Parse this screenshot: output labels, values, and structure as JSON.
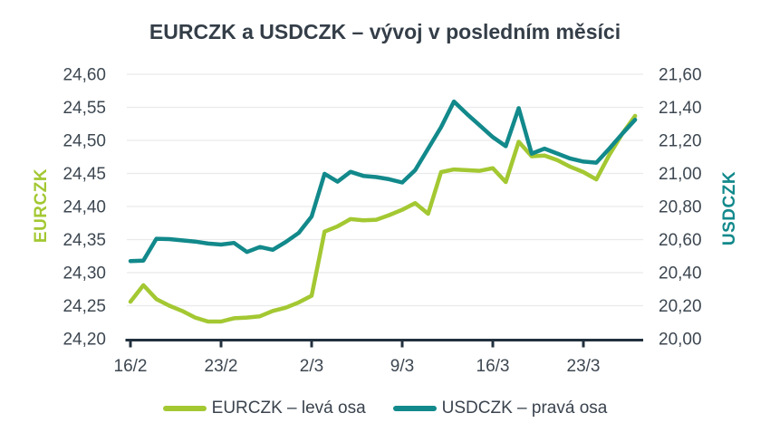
{
  "chart_data": {
    "type": "line",
    "title": "EURCZK a USDCZK – vývoj v posledním měsíci",
    "x": [
      "16/2",
      "17/2",
      "18/2",
      "19/2",
      "20/2",
      "21/2",
      "22/2",
      "23/2",
      "24/2",
      "25/2",
      "26/2",
      "27/2",
      "28/2",
      "1/3",
      "2/3",
      "3/3",
      "4/3",
      "5/3",
      "6/3",
      "7/3",
      "8/3",
      "9/3",
      "10/3",
      "11/3",
      "12/3",
      "13/3",
      "14/3",
      "15/3",
      "16/3",
      "17/3",
      "18/3",
      "19/3",
      "20/3",
      "21/3",
      "22/3",
      "23/3",
      "24/3",
      "25/3",
      "26/3",
      "27/3"
    ],
    "x_tick_labels": [
      "16/2",
      "23/2",
      "2/3",
      "9/3",
      "16/3",
      "23/3"
    ],
    "x_tick_indices": [
      0,
      7,
      14,
      21,
      28,
      35
    ],
    "series": [
      {
        "name": "EURCZK – levá osa",
        "axis": "left",
        "color": "#a3c832",
        "values": [
          24.256,
          24.281,
          24.26,
          24.25,
          24.242,
          24.232,
          24.226,
          24.226,
          24.231,
          24.232,
          24.234,
          24.242,
          24.247,
          24.255,
          24.265,
          24.362,
          24.37,
          24.381,
          24.379,
          24.38,
          24.387,
          24.395,
          24.405,
          24.389,
          24.452,
          24.456,
          24.455,
          24.454,
          24.458,
          24.437,
          24.498,
          24.476,
          24.477,
          24.47,
          24.46,
          24.452,
          24.441,
          24.478,
          24.51,
          24.537
        ]
      },
      {
        "name": "USDCZK – pravá osa",
        "axis": "right",
        "color": "#12898b",
        "values": [
          20.47,
          20.473,
          20.605,
          20.603,
          20.595,
          20.588,
          20.576,
          20.57,
          20.58,
          20.525,
          20.555,
          20.538,
          20.585,
          20.64,
          20.74,
          20.998,
          20.95,
          21.01,
          20.985,
          20.978,
          20.965,
          20.945,
          21.02,
          21.15,
          21.28,
          21.435,
          21.36,
          21.29,
          21.22,
          21.165,
          21.395,
          21.12,
          21.15,
          21.12,
          21.09,
          21.072,
          21.065,
          21.15,
          21.24,
          21.325
        ]
      }
    ],
    "left_axis": {
      "label": "EURCZK",
      "min": 24.2,
      "max": 24.6,
      "step": 0.05,
      "tick_labels": [
        "24,60",
        "24,55",
        "24,50",
        "24,45",
        "24,40",
        "24,35",
        "24,30",
        "24,25",
        "24,20"
      ]
    },
    "right_axis": {
      "label": "USDCZK",
      "min": 20.0,
      "max": 21.6,
      "step": 0.2,
      "tick_labels": [
        "21,60",
        "21,40",
        "21,20",
        "21,00",
        "20,80",
        "20,60",
        "20,40",
        "20,20",
        "20,00"
      ]
    },
    "grid": true,
    "legend_position": "bottom",
    "colors": {
      "eurczk_line": "#a3c832",
      "usdczk_line": "#12898b",
      "axis_line": "#22303e",
      "gridline": "#e9eaeb",
      "tick_label": "#3d4751",
      "title": "#343e48"
    }
  }
}
